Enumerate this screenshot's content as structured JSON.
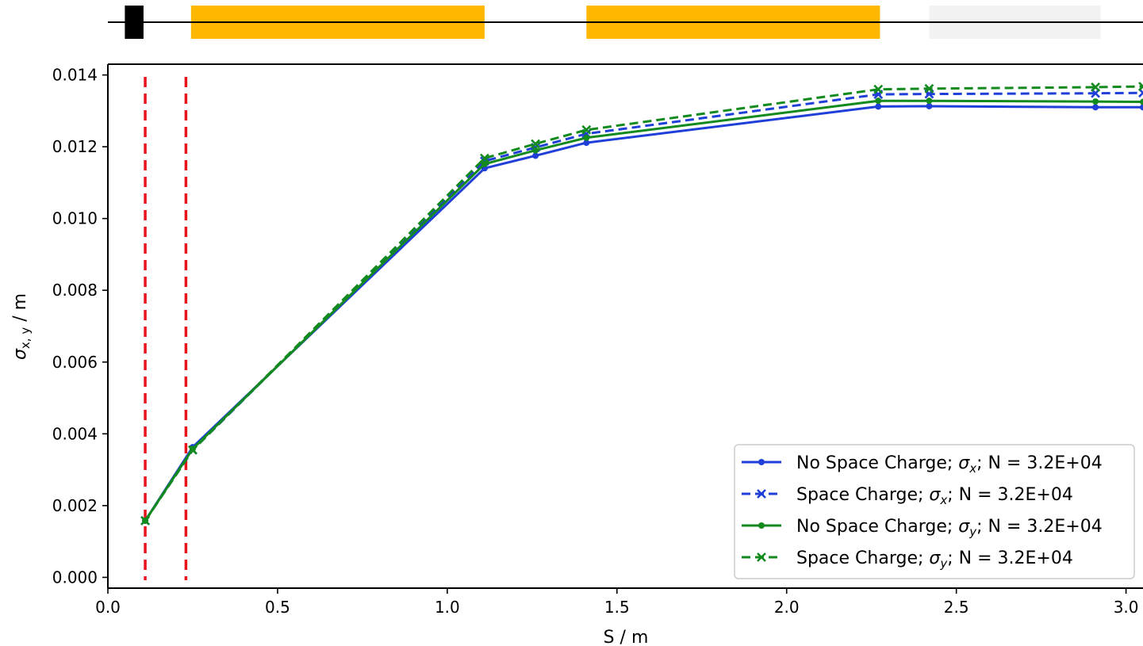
{
  "chart_data": {
    "type": "line",
    "xlabel": "S / m",
    "ylabel": "σx,y / m",
    "xlim": [
      0.0,
      3.05
    ],
    "ylim": [
      -0.0003,
      0.0143
    ],
    "xticks": [
      "0.0",
      "0.5",
      "1.0",
      "1.5",
      "2.0",
      "2.5",
      "3.0"
    ],
    "yticks": [
      "0.000",
      "0.002",
      "0.004",
      "0.006",
      "0.008",
      "0.010",
      "0.012",
      "0.014"
    ],
    "grid": false,
    "legend_position": "lower-right",
    "vlines": [
      {
        "x": 0.11,
        "color": "#e8141b",
        "style": "dashed"
      },
      {
        "x": 0.23,
        "color": "#e8141b",
        "style": "dashed"
      }
    ],
    "series": [
      {
        "name": "No Space Charge; σx; N = 3.2E+04",
        "color": "#1f3fd8",
        "dashed": false,
        "marker": "dot",
        "x": [
          0.11,
          0.25,
          1.11,
          1.26,
          1.41,
          2.27,
          2.42,
          2.91,
          3.05
        ],
        "y": [
          0.00158,
          0.00363,
          0.0114,
          0.01175,
          0.01211,
          0.01312,
          0.01313,
          0.0131,
          0.0131
        ]
      },
      {
        "name": "Space Charge; σx; N = 3.2E+04",
        "color": "#1f3fd8",
        "dashed": true,
        "marker": "x",
        "x": [
          0.11,
          0.25,
          1.11,
          1.26,
          1.41,
          2.27,
          2.42,
          2.91,
          3.05
        ],
        "y": [
          0.00158,
          0.00355,
          0.0116,
          0.01198,
          0.01236,
          0.01346,
          0.01347,
          0.01349,
          0.0135
        ]
      },
      {
        "name": "No Space Charge; σy; N = 3.2E+04",
        "color": "#138a1e",
        "dashed": false,
        "marker": "dot",
        "x": [
          0.11,
          0.25,
          1.11,
          1.26,
          1.41,
          2.27,
          2.42,
          2.91,
          3.05
        ],
        "y": [
          0.00158,
          0.00358,
          0.01152,
          0.0119,
          0.01225,
          0.01328,
          0.01328,
          0.01326,
          0.01325
        ]
      },
      {
        "name": "Space Charge; σy; N = 3.2E+04",
        "color": "#138a1e",
        "dashed": true,
        "marker": "x",
        "x": [
          0.11,
          0.25,
          1.11,
          1.26,
          1.41,
          2.27,
          2.42,
          2.91,
          3.05
        ],
        "y": [
          0.00158,
          0.00355,
          0.01168,
          0.01208,
          0.01247,
          0.0136,
          0.01362,
          0.01366,
          0.01368
        ]
      }
    ],
    "lattice": [
      {
        "type": "block",
        "color": "#000000",
        "s_start": 0.05,
        "s_end": 0.105
      },
      {
        "type": "block",
        "color": "#ffb700",
        "s_start": 0.245,
        "s_end": 1.11
      },
      {
        "type": "block",
        "color": "#ffb700",
        "s_start": 1.41,
        "s_end": 2.275
      },
      {
        "type": "block",
        "color": "#f2f2f2",
        "s_start": 2.42,
        "s_end": 2.925
      }
    ]
  },
  "legend": {
    "entries": [
      {
        "prefix": "No Space Charge; ",
        "sub": "x",
        "suffix": "; N = 3.2E+04"
      },
      {
        "prefix": "Space Charge; ",
        "sub": "x",
        "suffix": "; N = 3.2E+04"
      },
      {
        "prefix": "No Space Charge; ",
        "sub": "y",
        "suffix": "; N = 3.2E+04"
      },
      {
        "prefix": "Space Charge; ",
        "sub": "y",
        "suffix": "; N = 3.2E+04"
      }
    ]
  }
}
